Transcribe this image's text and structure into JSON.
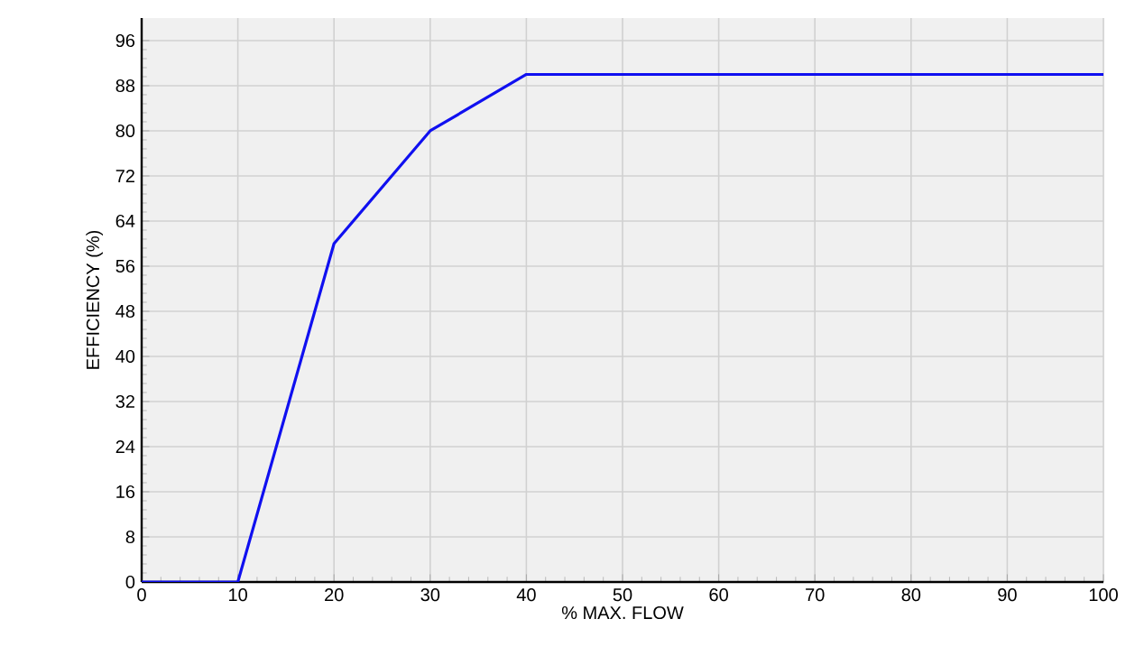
{
  "chart_data": {
    "type": "line",
    "xlabel": "% MAX. FLOW",
    "ylabel": "EFFICIENCY (%)",
    "x": [
      0,
      10,
      20,
      30,
      40,
      100
    ],
    "series": [
      {
        "color": "#1010f0",
        "values": [
          0,
          0,
          60,
          80,
          90,
          90
        ]
      }
    ],
    "xlim": [
      0,
      100
    ],
    "ylim": [
      0,
      100
    ],
    "xticks": [
      0,
      10,
      20,
      30,
      40,
      50,
      60,
      70,
      80,
      90,
      100
    ],
    "yticks": [
      0,
      8,
      16,
      24,
      32,
      40,
      48,
      56,
      64,
      72,
      80,
      88,
      96
    ],
    "grid": true,
    "line_style": "solid"
  }
}
